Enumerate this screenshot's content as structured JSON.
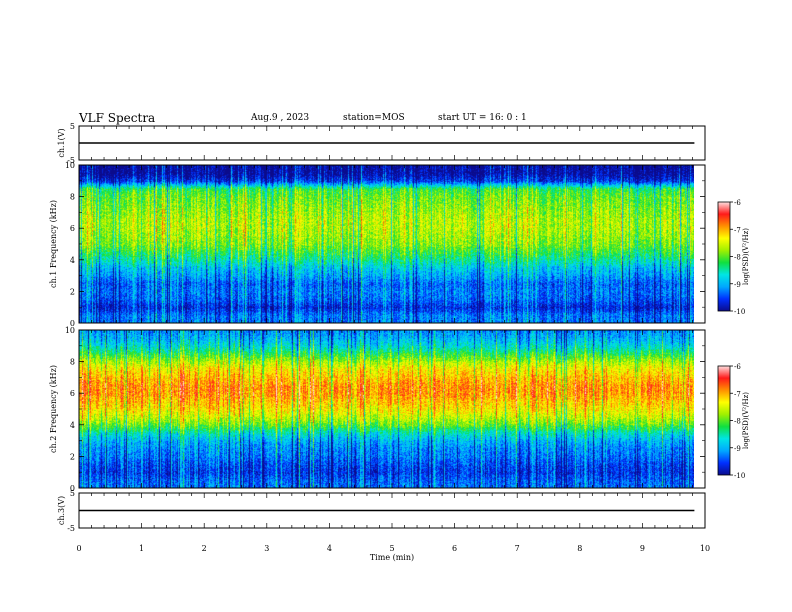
{
  "header": {
    "title": "VLF Spectra",
    "date": "Aug.9 , 2023",
    "station": "station=MOS",
    "start_ut": "start UT = 16: 0 : 1"
  },
  "colormap": [
    "#0b0b8c",
    "#0030ff",
    "#00a8ff",
    "#00e5e5",
    "#10e040",
    "#a0f000",
    "#ffff00",
    "#ff9000",
    "#ff1a1a",
    "#ffe0e0"
  ],
  "chart_data": [
    {
      "type": "line",
      "panel": "ch1-voltage",
      "ylabel": "ch.1(V)",
      "ylim": [
        -5,
        5
      ],
      "yticks": [
        "5",
        "-5"
      ],
      "xlim": [
        0,
        10
      ],
      "series": [
        {
          "x": [
            0,
            9.83
          ],
          "y": [
            0,
            0
          ]
        }
      ],
      "grid": false
    },
    {
      "type": "heatmap",
      "panel": "ch1-spectrogram",
      "ylabel": "ch.1 Frequency (kHz)",
      "ylim": [
        0,
        10
      ],
      "yticks": [
        "0",
        "2",
        "4",
        "6",
        "8",
        "10"
      ],
      "xlim": [
        0,
        10
      ],
      "colorbar": {
        "label": "log(PSD)(V²/Hz)",
        "range": [
          -10,
          -6
        ],
        "ticks": [
          "-6",
          "-7",
          "-8",
          "-9",
          "-10"
        ]
      },
      "frequency_profile_kHz": [
        0,
        0.5,
        1,
        1.5,
        2,
        2.5,
        3,
        3.5,
        4,
        4.5,
        5,
        5.5,
        6,
        6.5,
        7,
        7.5,
        8,
        8.5,
        9,
        9.5,
        10
      ],
      "frequency_profile_logPSD": [
        -9.3,
        -9.3,
        -9.7,
        -9.4,
        -9.3,
        -9.4,
        -9.1,
        -8.9,
        -8.5,
        -8.2,
        -7.9,
        -7.8,
        -7.7,
        -7.7,
        -7.8,
        -7.9,
        -8.0,
        -8.2,
        -9.6,
        -10,
        -10
      ],
      "data_end_min": 9.83,
      "grid": false
    },
    {
      "type": "heatmap",
      "panel": "ch2-spectrogram",
      "ylabel": "ch.2 Frequency (kHz)",
      "ylim": [
        0,
        10
      ],
      "yticks": [
        "0",
        "2",
        "4",
        "6",
        "8",
        "10"
      ],
      "xlim": [
        0,
        10
      ],
      "colorbar": {
        "label": "log(PSD)(V²/Hz)",
        "range": [
          -10,
          -6
        ],
        "ticks": [
          "-6",
          "-7",
          "-8",
          "-9",
          "-10"
        ]
      },
      "frequency_profile_kHz": [
        0,
        0.5,
        1,
        1.5,
        2,
        2.5,
        3,
        3.5,
        4,
        4.5,
        5,
        5.5,
        6,
        6.5,
        7,
        7.5,
        8,
        8.5,
        9,
        9.5,
        10
      ],
      "frequency_profile_logPSD": [
        -9.3,
        -9.4,
        -9.6,
        -9.5,
        -9.3,
        -9.2,
        -9.0,
        -8.6,
        -8.0,
        -7.6,
        -7.3,
        -7.1,
        -6.9,
        -6.9,
        -7.1,
        -7.3,
        -7.7,
        -8.2,
        -8.7,
        -9.0,
        -9.2
      ],
      "data_end_min": 9.83,
      "grid": false
    },
    {
      "type": "line",
      "panel": "ch3-voltage",
      "ylabel": "ch.3(V)",
      "ylim": [
        -5,
        5
      ],
      "yticks": [
        "5",
        "-5"
      ],
      "xlim": [
        0,
        10
      ],
      "xlabel": "Time (min)",
      "xticks": [
        "0",
        "1",
        "2",
        "3",
        "4",
        "5",
        "6",
        "7",
        "8",
        "9",
        "10"
      ],
      "series": [
        {
          "x": [
            0,
            9.83
          ],
          "y": [
            0,
            0
          ]
        }
      ],
      "grid": false
    }
  ]
}
